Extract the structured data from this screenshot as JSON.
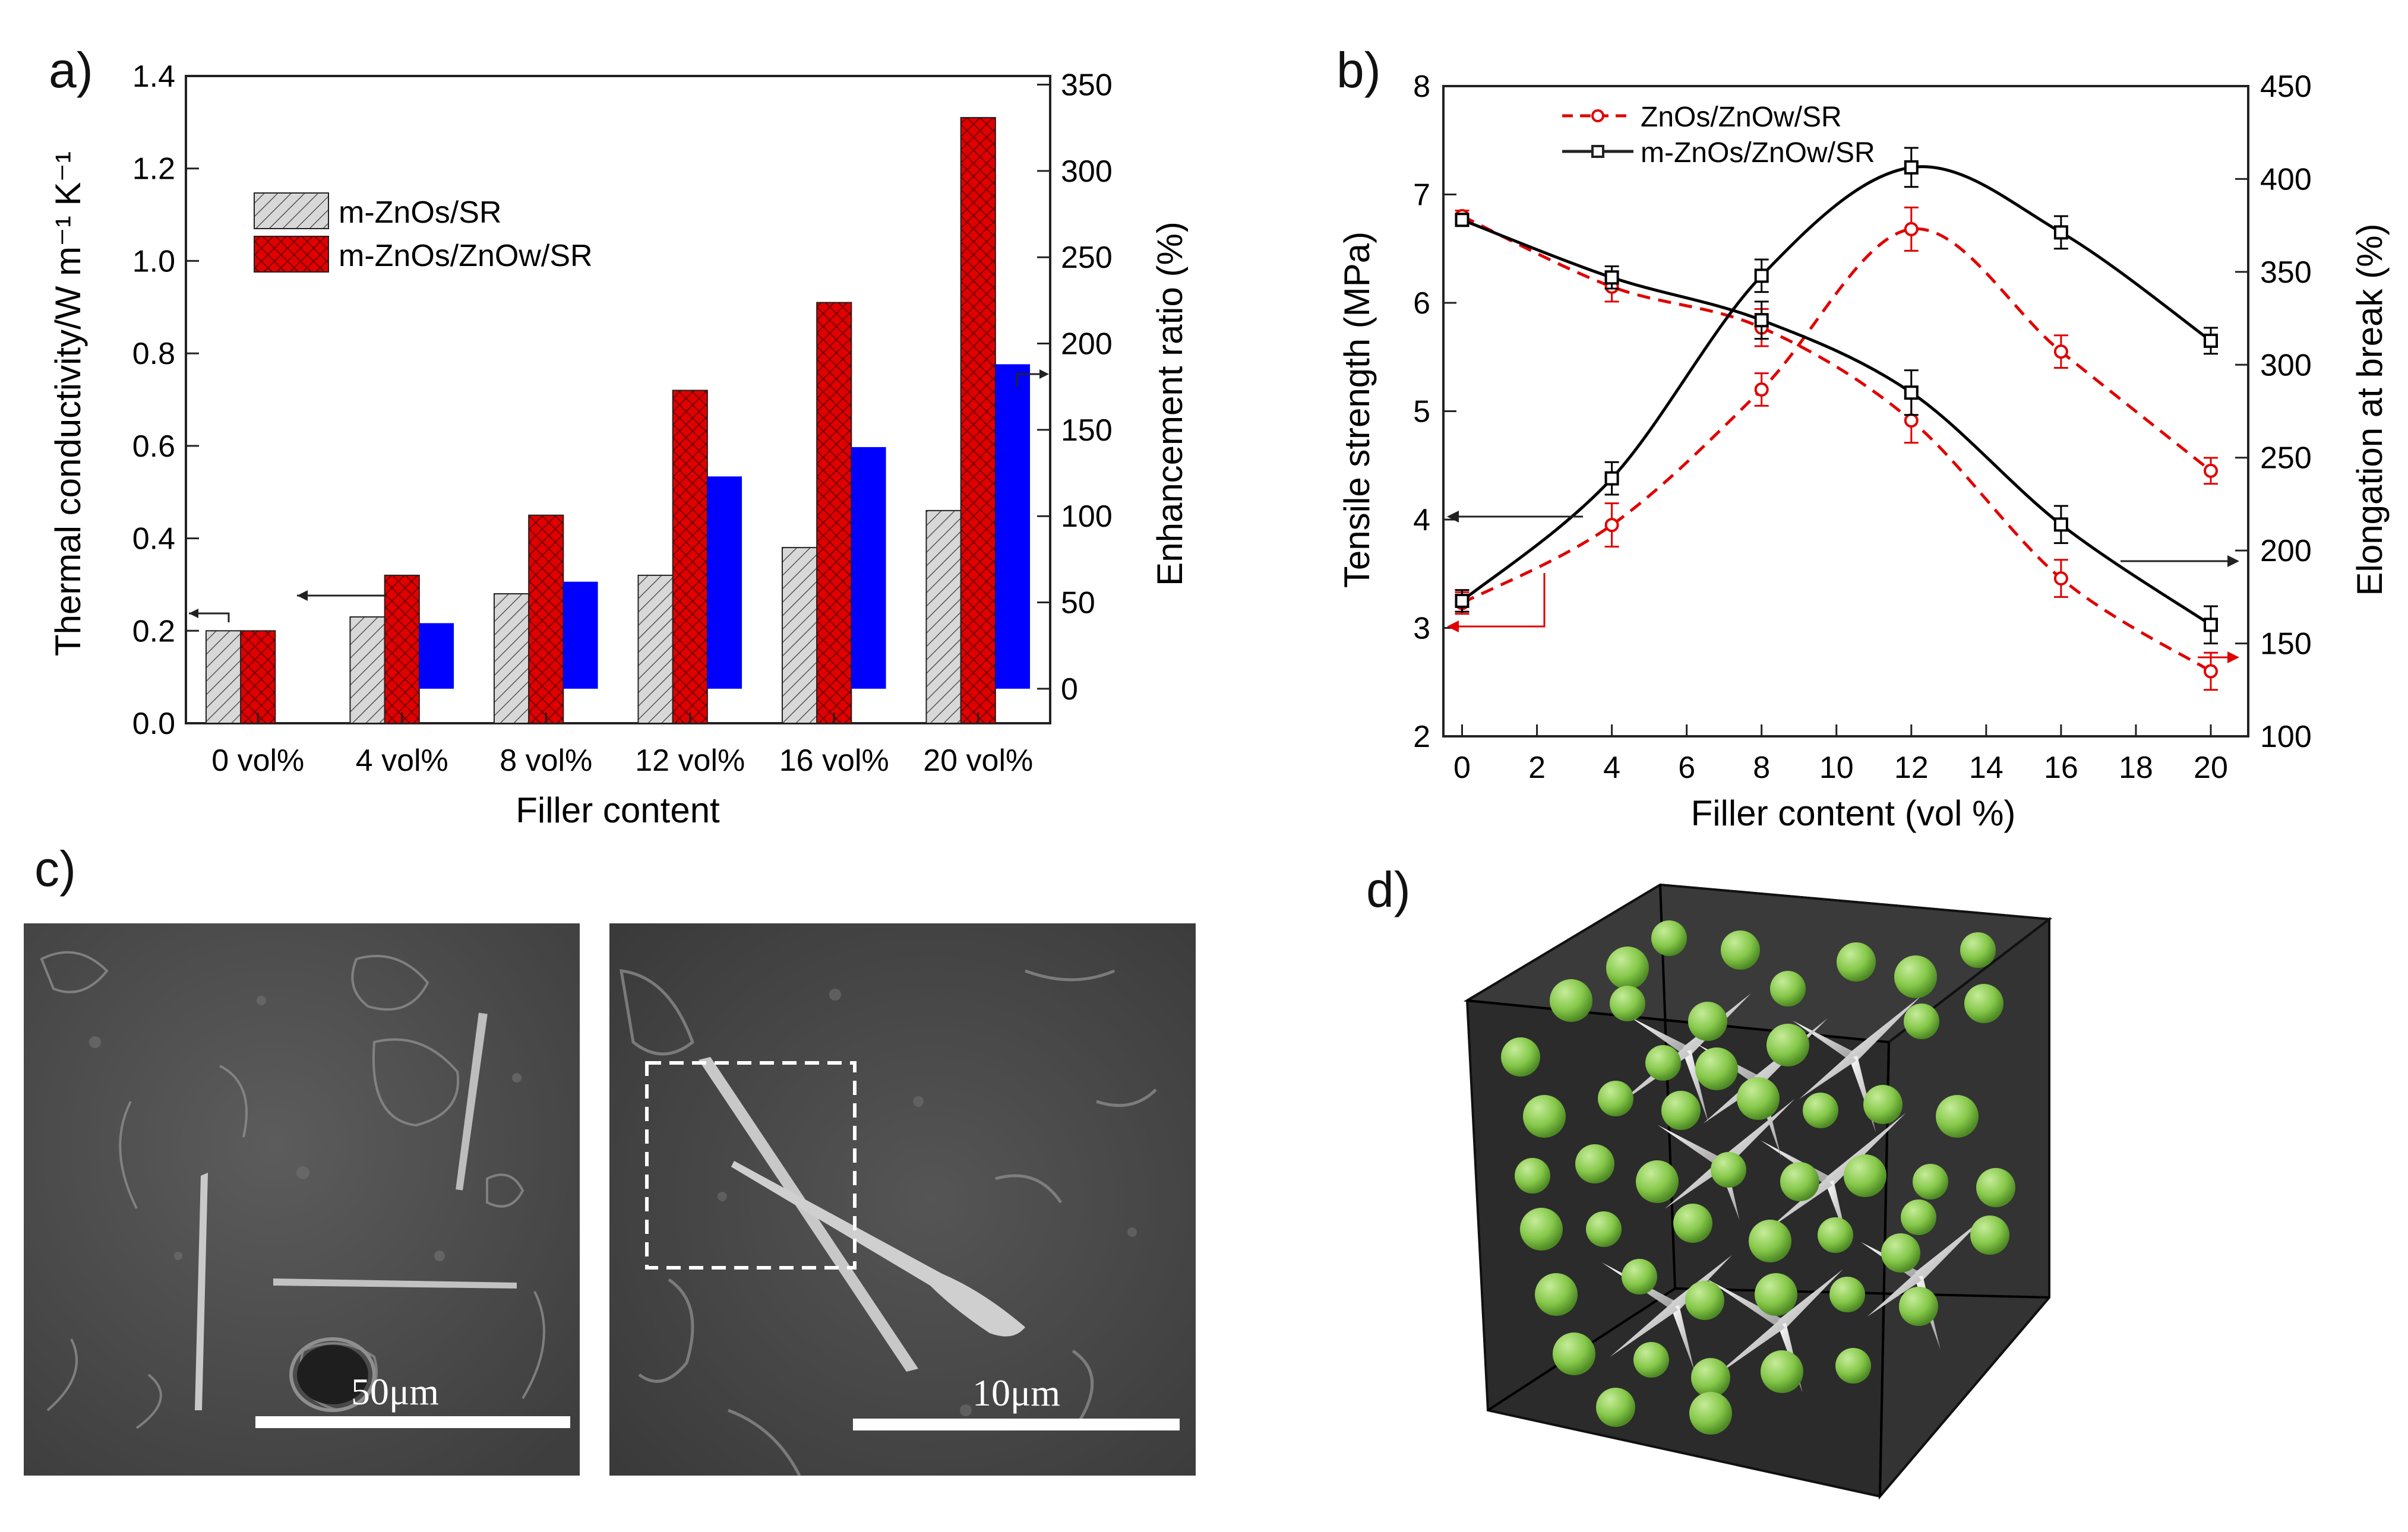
{
  "panel_labels": {
    "a": "a)",
    "b": "b)",
    "c": "c)",
    "d": "d)"
  },
  "colors": {
    "red": "#e00000",
    "blue": "#0000ff",
    "gray": "#d8d8d8",
    "black": "#000000",
    "green": "#8ccc4a",
    "cube": "#2a2a2a"
  },
  "chart_data": [
    {
      "type": "bar",
      "title": "",
      "xlabel": "Filler content",
      "ylabel": "Thermal conductivity/W m⁻¹ K⁻¹",
      "y2label": "Enhancement ratio (%)",
      "categories": [
        "0 vol%",
        "4 vol%",
        "8 vol%",
        "12 vol%",
        "16 vol%",
        "20 vol%"
      ],
      "ylim": [
        0,
        1.4
      ],
      "y_ticks": [
        "0.0",
        "0.2",
        "0.4",
        "0.6",
        "0.8",
        "1.0",
        "1.2",
        "1.4"
      ],
      "y2lim": [
        -20,
        355
      ],
      "y2_ticks": [
        "0",
        "50",
        "100",
        "150",
        "200",
        "250",
        "300",
        "350"
      ],
      "series": [
        {
          "name": "m-ZnOs/SR",
          "axis": "left",
          "values": [
            0.2,
            0.23,
            0.28,
            0.32,
            0.38,
            0.46
          ]
        },
        {
          "name": "m-ZnOs/ZnOw/SR",
          "axis": "left",
          "values": [
            0.2,
            0.32,
            0.45,
            0.72,
            0.91,
            1.31
          ]
        },
        {
          "name": "Enhancement ratio",
          "axis": "right",
          "values": [
            0,
            38,
            62,
            123,
            140,
            188
          ]
        }
      ],
      "legend": [
        "m-ZnOs/SR",
        "m-ZnOs/ZnOw/SR"
      ]
    },
    {
      "type": "line",
      "title": "",
      "xlabel": "Filler content (vol %)",
      "ylabel": "Tensile strength (MPa)",
      "y2label": "Elongation at break (%)",
      "xlim": [
        -0.5,
        21
      ],
      "x_ticks": [
        "0",
        "2",
        "4",
        "6",
        "8",
        "10",
        "12",
        "14",
        "16",
        "18",
        "20"
      ],
      "ylim": [
        2,
        8
      ],
      "y_ticks": [
        "2",
        "3",
        "4",
        "5",
        "6",
        "7",
        "8"
      ],
      "y2lim": [
        100,
        450
      ],
      "y2_ticks": [
        "100",
        "150",
        "200",
        "250",
        "300",
        "350",
        "400",
        "450"
      ],
      "x": [
        0,
        4,
        8,
        12,
        16,
        20
      ],
      "series": [
        {
          "name": "ZnOs/ZnOw/SR",
          "quantity": "tensile",
          "values": [
            3.23,
            3.95,
            5.2,
            6.68,
            5.55,
            4.45
          ],
          "errors": [
            0.1,
            0.2,
            0.15,
            0.2,
            0.15,
            0.12
          ]
        },
        {
          "name": "ZnOs/ZnOw/SR",
          "quantity": "elongation",
          "values": [
            380,
            342,
            320,
            270,
            185,
            135
          ],
          "errors": [
            3,
            8,
            10,
            12,
            10,
            10
          ]
        },
        {
          "name": "m-ZnOs/ZnOw/SR",
          "quantity": "tensile",
          "values": [
            3.25,
            4.38,
            6.25,
            7.25,
            6.65,
            5.65
          ],
          "errors": [
            0.1,
            0.15,
            0.15,
            0.18,
            0.15,
            0.12
          ]
        },
        {
          "name": "m-ZnOs/ZnOw/SR",
          "quantity": "elongation",
          "values": [
            378,
            347,
            324,
            285,
            214,
            160
          ],
          "errors": [
            3,
            6,
            10,
            12,
            10,
            10
          ]
        }
      ],
      "legend": [
        "ZnOs/ZnOw/SR",
        "m-ZnOs/ZnOw/SR"
      ]
    }
  ],
  "micrographs": {
    "left_scale": "50μm",
    "right_scale": "10μm"
  }
}
